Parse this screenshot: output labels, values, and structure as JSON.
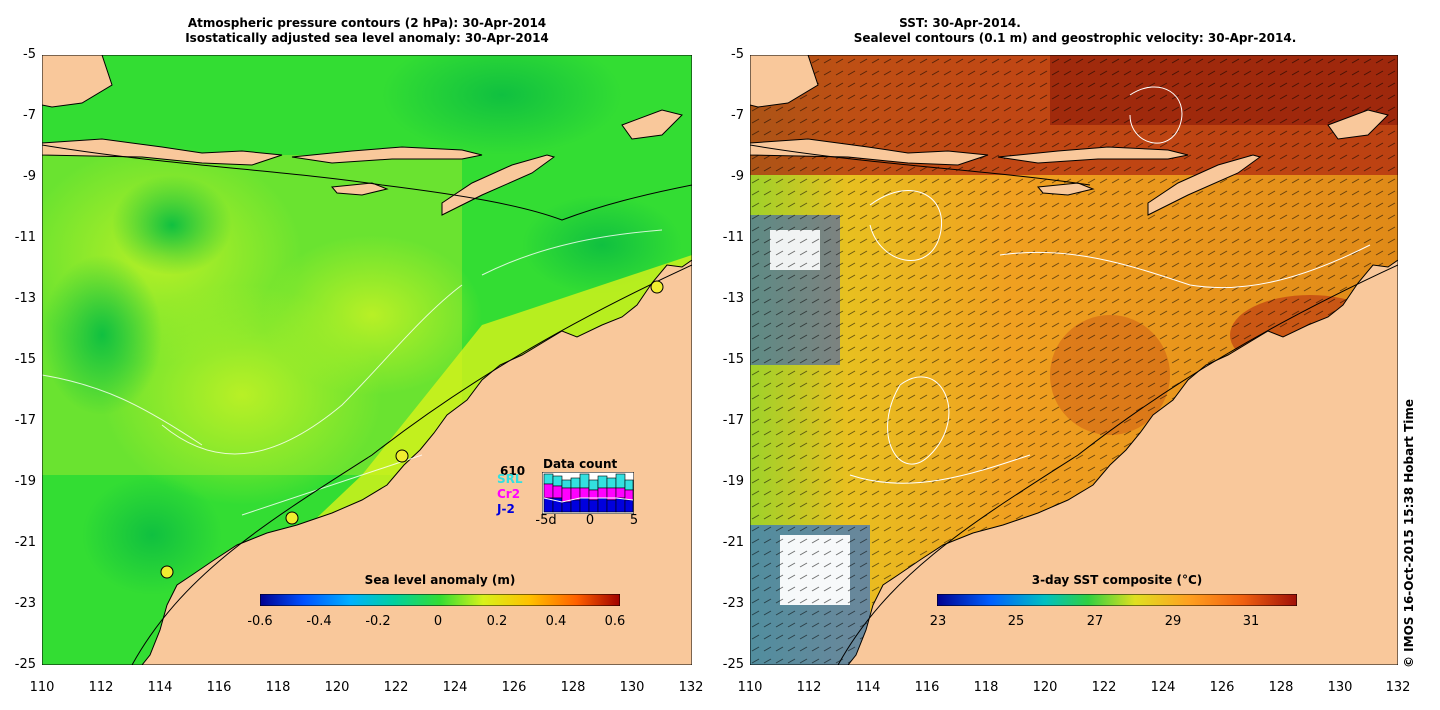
{
  "left_panel": {
    "title_line1": "Atmospheric pressure contours (2 hPa): 30-Apr-2014",
    "title_line2": "Isostatically adjusted sea level anomaly: 30-Apr-2014",
    "y_ticks": [
      "-5",
      "-7",
      "-9",
      "-11",
      "-13",
      "-15",
      "-17",
      "-19",
      "-21",
      "-23",
      "-25"
    ],
    "x_ticks": [
      "110",
      "112",
      "114",
      "116",
      "118",
      "120",
      "122",
      "124",
      "126",
      "128",
      "130",
      "132"
    ],
    "colorbar": {
      "label": "Sea level anomaly (m)",
      "ticks": [
        "-0.6",
        "-0.4",
        "-0.2",
        "0",
        "0.2",
        "0.4",
        "0.6"
      ],
      "min": -0.6,
      "max": 0.6
    },
    "data_count_inset": {
      "title": "Data count",
      "number": "610",
      "satellites": [
        "SRL",
        "Cr2",
        "J-2"
      ],
      "satellite_colors": [
        "#33e0e0",
        "#ff00ff",
        "#0000dd"
      ],
      "x_ticks": [
        "-5d",
        "0",
        "5"
      ]
    }
  },
  "right_panel": {
    "title_line1": "SST: 30-Apr-2014.",
    "title_line2": "Sealevel contours (0.1 m) and geostrophic velocity: 30-Apr-2014.",
    "y_ticks": [
      "-5",
      "-7",
      "-9",
      "-11",
      "-13",
      "-15",
      "-17",
      "-19",
      "-21",
      "-23",
      "-25"
    ],
    "x_ticks": [
      "110",
      "112",
      "114",
      "116",
      "118",
      "120",
      "122",
      "124",
      "126",
      "128",
      "130",
      "132"
    ],
    "colorbar": {
      "label": "3-day SST composite (°C)",
      "ticks": [
        "23",
        "25",
        "27",
        "29",
        "31"
      ],
      "min": 23,
      "max": 32.5
    }
  },
  "map_extent": {
    "lon_range": [
      110,
      132
    ],
    "lat_range": [
      -25,
      -5
    ]
  },
  "colors": {
    "land": "#f9c89b",
    "sla_ocean": "#33dd33",
    "sst_ocean": "#e08a18"
  },
  "credit": "© IMOS 16-Oct-2015 15:38 Hobart Time"
}
